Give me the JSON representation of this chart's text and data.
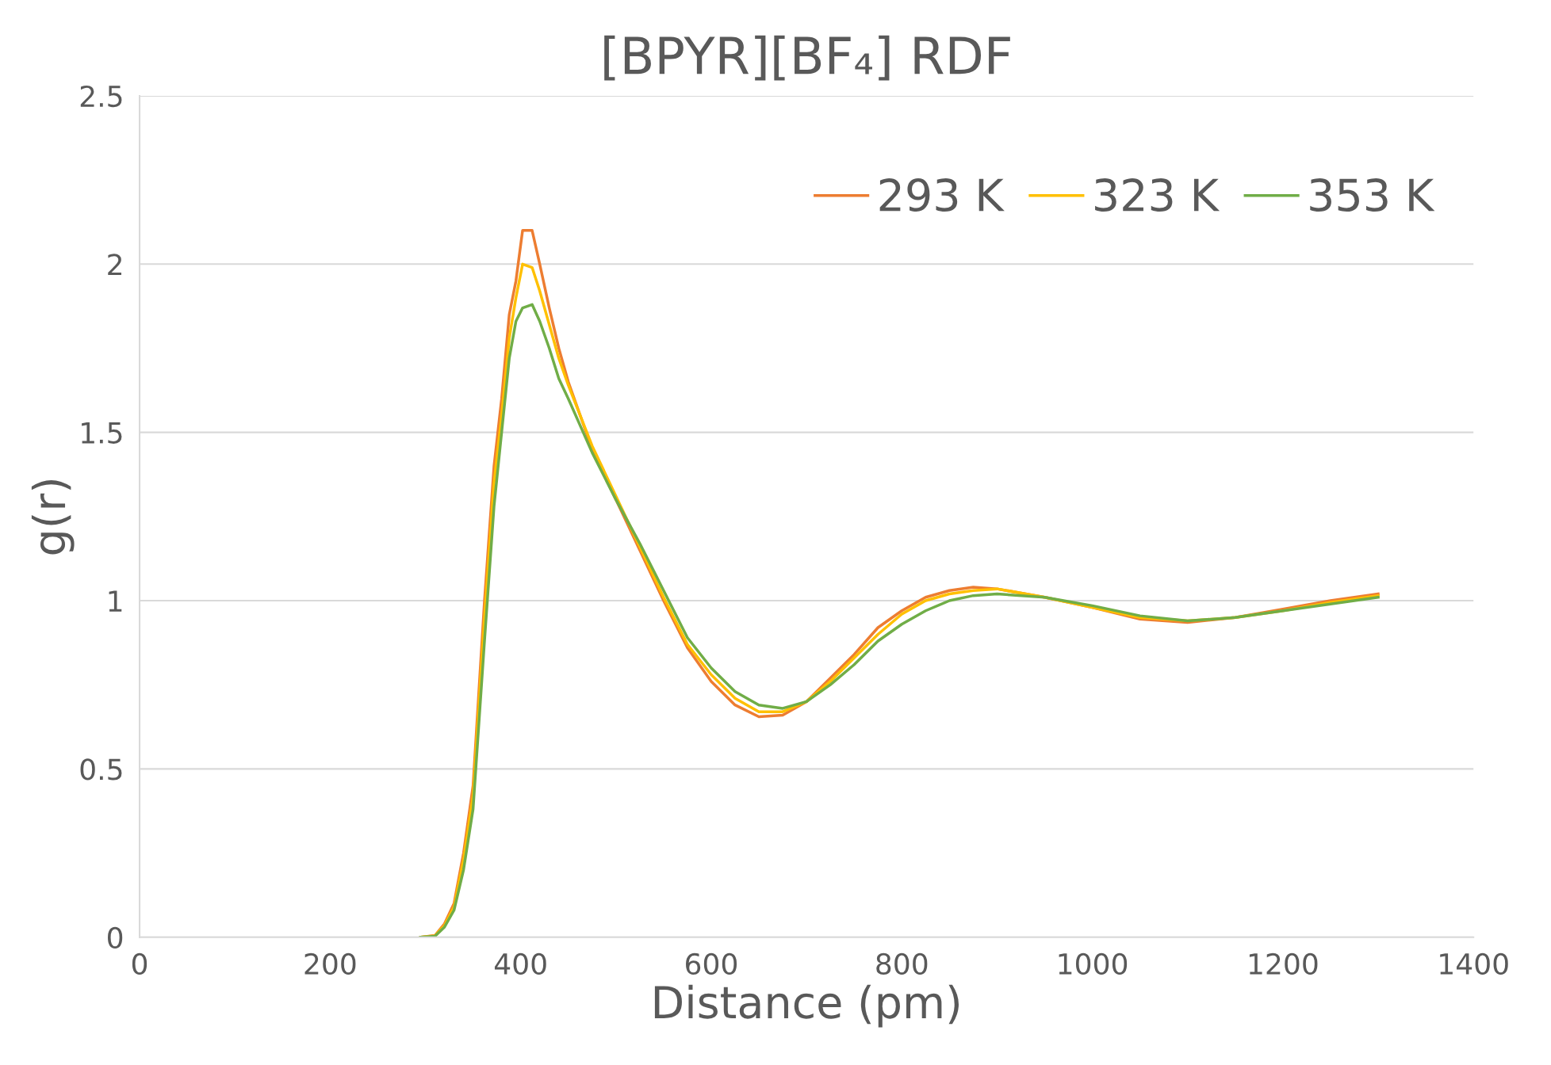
{
  "chart_data": {
    "type": "line",
    "title": "[BPYR][BF₄] RDF",
    "xlabel": "Distance (pm)",
    "ylabel": "g(r)",
    "xlim": [
      0,
      1400
    ],
    "xticks": [
      0,
      200,
      400,
      600,
      800,
      1000,
      1200,
      1400
    ],
    "ylim": [
      0,
      2.5
    ],
    "yticks": [
      0,
      0.5,
      1,
      1.5,
      2,
      2.5
    ],
    "grid": "y",
    "legend": "top right",
    "marker": "none",
    "line_style": "solid",
    "series": [
      {
        "name": "293 K",
        "color": "#ed7d31",
        "x": [
          295,
          310,
          320,
          330,
          340,
          350,
          362,
          372,
          380,
          388,
          395,
          402,
          412,
          420,
          430,
          440,
          450,
          475,
          500,
          525,
          550,
          575,
          600,
          625,
          650,
          675,
          700,
          725,
          750,
          775,
          800,
          825,
          850,
          875,
          900,
          950,
          1000,
          1050,
          1100,
          1150,
          1200,
          1250,
          1300
        ],
        "values": [
          0,
          0.005,
          0.04,
          0.1,
          0.25,
          0.45,
          1.0,
          1.4,
          1.6,
          1.85,
          1.95,
          2.1,
          2.1,
          2.0,
          1.87,
          1.75,
          1.65,
          1.45,
          1.3,
          1.15,
          1.0,
          0.86,
          0.76,
          0.69,
          0.655,
          0.66,
          0.7,
          0.77,
          0.84,
          0.92,
          0.97,
          1.01,
          1.03,
          1.04,
          1.035,
          1.01,
          0.98,
          0.945,
          0.935,
          0.95,
          0.975,
          1.0,
          1.02
        ]
      },
      {
        "name": "323 K",
        "color": "#ffc000",
        "x": [
          295,
          310,
          320,
          330,
          340,
          350,
          362,
          372,
          380,
          388,
          395,
          402,
          412,
          420,
          430,
          440,
          450,
          475,
          500,
          525,
          550,
          575,
          600,
          625,
          650,
          675,
          700,
          725,
          750,
          775,
          800,
          825,
          850,
          875,
          900,
          950,
          1000,
          1050,
          1100,
          1150,
          1200,
          1250,
          1300
        ],
        "values": [
          0,
          0.004,
          0.035,
          0.09,
          0.23,
          0.42,
          0.95,
          1.35,
          1.55,
          1.78,
          1.9,
          2.0,
          1.99,
          1.92,
          1.82,
          1.72,
          1.64,
          1.46,
          1.31,
          1.16,
          1.01,
          0.87,
          0.78,
          0.71,
          0.67,
          0.67,
          0.7,
          0.76,
          0.83,
          0.9,
          0.96,
          1.0,
          1.02,
          1.03,
          1.035,
          1.01,
          0.98,
          0.95,
          0.94,
          0.95,
          0.97,
          0.995,
          1.015
        ]
      },
      {
        "name": "353 K",
        "color": "#70ad47",
        "x": [
          295,
          310,
          320,
          330,
          340,
          350,
          362,
          372,
          380,
          388,
          395,
          402,
          412,
          420,
          430,
          440,
          450,
          475,
          500,
          525,
          550,
          575,
          600,
          625,
          650,
          675,
          700,
          725,
          750,
          775,
          800,
          825,
          850,
          875,
          900,
          950,
          1000,
          1050,
          1100,
          1150,
          1200,
          1250,
          1300
        ],
        "values": [
          0,
          0.003,
          0.03,
          0.08,
          0.2,
          0.38,
          0.88,
          1.28,
          1.5,
          1.72,
          1.83,
          1.87,
          1.88,
          1.83,
          1.75,
          1.66,
          1.6,
          1.44,
          1.3,
          1.17,
          1.03,
          0.89,
          0.8,
          0.73,
          0.69,
          0.68,
          0.7,
          0.75,
          0.81,
          0.88,
          0.93,
          0.97,
          1.0,
          1.015,
          1.02,
          1.01,
          0.985,
          0.955,
          0.94,
          0.95,
          0.97,
          0.99,
          1.01
        ]
      }
    ]
  }
}
